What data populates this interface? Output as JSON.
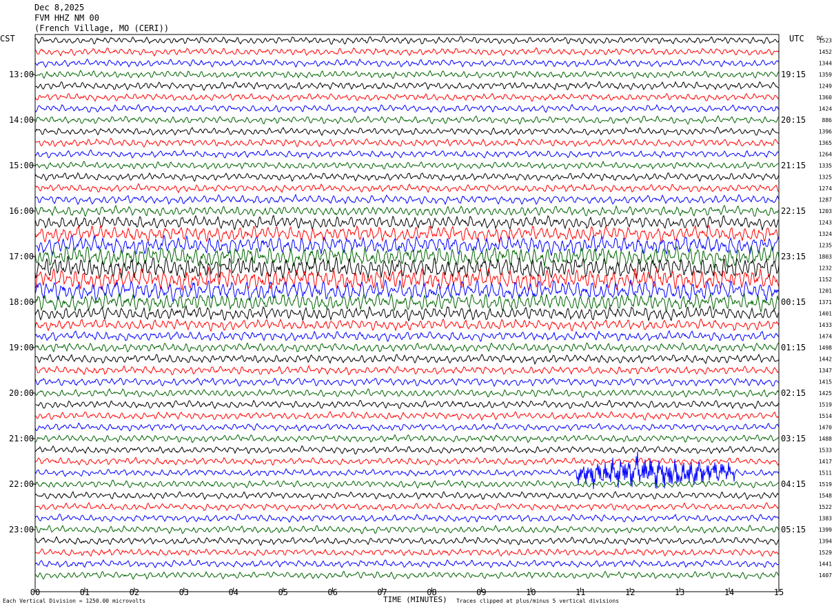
{
  "header": {
    "date": "Dec 8,2025",
    "station": "FVM HHZ NM 00",
    "location": "(French Village, MO (CERI))"
  },
  "left_tz": "CST",
  "right_tz": "UTC",
  "dc_label": "DC",
  "footer": {
    "scale": "Each Vertical Division = 1250.00 microvolts",
    "xlabel": "TIME (MINUTES)",
    "clip": "Traces clipped at plus/minus 5 vertical divisions"
  },
  "chart_data": {
    "type": "line",
    "title": "",
    "xlabel": "TIME (MINUTES)",
    "xlim": [
      0,
      15
    ],
    "x_ticks": [
      "00",
      "01",
      "02",
      "03",
      "04",
      "05",
      "06",
      "07",
      "08",
      "09",
      "10",
      "11",
      "12",
      "13",
      "14",
      "15"
    ],
    "trace_count": 48,
    "trace_interval_minutes": 15,
    "trace_colors": [
      "#000000",
      "#ff0000",
      "#0000ff",
      "#006400"
    ],
    "left_hour_labels": [
      "13:00",
      "14:00",
      "15:00",
      "16:00",
      "17:00",
      "18:00",
      "19:00",
      "20:00",
      "21:00",
      "22:00",
      "23:00"
    ],
    "right_hour_labels": [
      "19:15",
      "20:15",
      "21:15",
      "22:15",
      "23:15",
      "00:15",
      "01:15",
      "02:15",
      "03:15",
      "04:15",
      "05:15"
    ],
    "dc_offsets": [
      "1523",
      "1452",
      "1344",
      "1359",
      "1249",
      "1360",
      "1424",
      "886",
      "1396",
      "1365",
      "1264",
      "1335",
      "1325",
      "1274",
      "1287",
      "1203",
      "1243",
      "1324",
      "1235",
      "1803",
      "1232",
      "1152",
      "1201",
      "1371",
      "1401",
      "1433",
      "1474",
      "1498",
      "1442",
      "1347",
      "1415",
      "1425",
      "1519",
      "1514",
      "1470",
      "1488",
      "1533",
      "1417",
      "1511",
      "1519",
      "1548",
      "1522",
      "1383",
      "1399",
      "1394",
      "1529",
      "1441",
      "1407"
    ],
    "trace_amplitude_divisions": [
      1.6,
      1.6,
      1.6,
      1.6,
      1.7,
      1.6,
      1.6,
      1.6,
      1.6,
      1.7,
      1.6,
      1.6,
      1.7,
      1.7,
      1.9,
      2.2,
      2.8,
      3.5,
      4.0,
      4.5,
      4.8,
      4.8,
      4.5,
      3.8,
      3.0,
      2.4,
      2.1,
      2.0,
      1.9,
      1.8,
      1.8,
      1.7,
      1.7,
      1.7,
      1.6,
      1.6,
      1.6,
      1.6,
      1.5,
      1.6,
      1.6,
      1.6,
      1.6,
      1.6,
      1.6,
      1.6,
      1.6,
      1.6
    ],
    "events": [
      {
        "trace_index": 38,
        "start_minute": 10.9,
        "end_minute": 14.1,
        "peak_minute": 12.3,
        "relative_amplitude": 3.0
      }
    ]
  }
}
